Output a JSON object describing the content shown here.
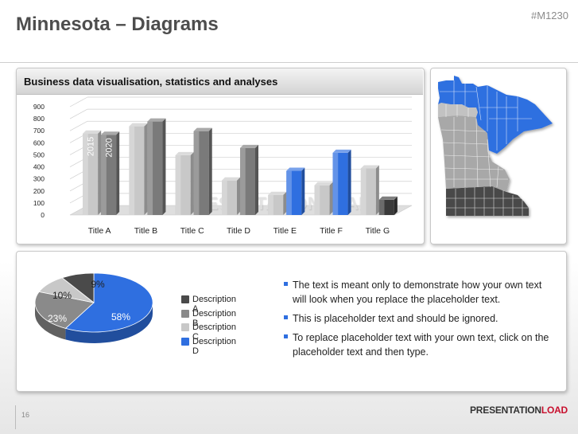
{
  "slide": {
    "title": "Minnesota – Diagrams",
    "code": "#M1230",
    "page_number": "16"
  },
  "chart_panel": {
    "header": "Business data visualisation, statistics and analyses"
  },
  "watermark": "PRESENTATIONLOAD",
  "logo": {
    "part1": "PRESENTATION",
    "part2": "LOAD"
  },
  "chart_data": [
    {
      "type": "bar",
      "categories": [
        "Title A",
        "Title B",
        "Title C",
        "Title D",
        "Title E",
        "Title F",
        "Title G"
      ],
      "series": [
        {
          "name": "2015",
          "values": [
            730,
            790,
            550,
            340,
            220,
            300,
            440
          ]
        },
        {
          "name": "2020",
          "values": [
            720,
            830,
            750,
            610,
            420,
            570,
            180
          ]
        }
      ],
      "bar_colors": [
        [
          "#c8c8c8",
          "#7a7a7a"
        ],
        [
          "#c8c8c8",
          "#7a7a7a"
        ],
        [
          "#c8c8c8",
          "#7a7a7a"
        ],
        [
          "#c8c8c8",
          "#7a7a7a"
        ],
        [
          "#c8c8c8",
          "#2f6fe0"
        ],
        [
          "#c8c8c8",
          "#2f6fe0"
        ],
        [
          "#c8c8c8",
          "#3a3a3a"
        ]
      ],
      "ylim": [
        0,
        900
      ],
      "yticks": [
        0,
        100,
        200,
        300,
        400,
        500,
        600,
        700,
        800,
        900
      ],
      "grid": true
    },
    {
      "type": "pie",
      "labels": [
        "Description A",
        "Description B",
        "Description C",
        "Description D"
      ],
      "values": [
        9,
        23,
        10,
        58
      ],
      "value_labels": [
        "9%",
        "23%",
        "10%",
        "58%"
      ],
      "colors": [
        "#4a4a4a",
        "#8a8a8a",
        "#c8c8c8",
        "#2f6fe0"
      ],
      "legend": "right"
    }
  ],
  "bullets": [
    "The text is meant only to demonstrate how your own text will look when you replace the placeholder text.",
    "This is placeholder text and should be ignored.",
    "To replace placeholder text with your own text, click on the placeholder text and then type."
  ],
  "map": {
    "highlight_color": "#2f6fe0",
    "base_color": "#a8a8a8",
    "south_color": "#4a4a4a"
  }
}
